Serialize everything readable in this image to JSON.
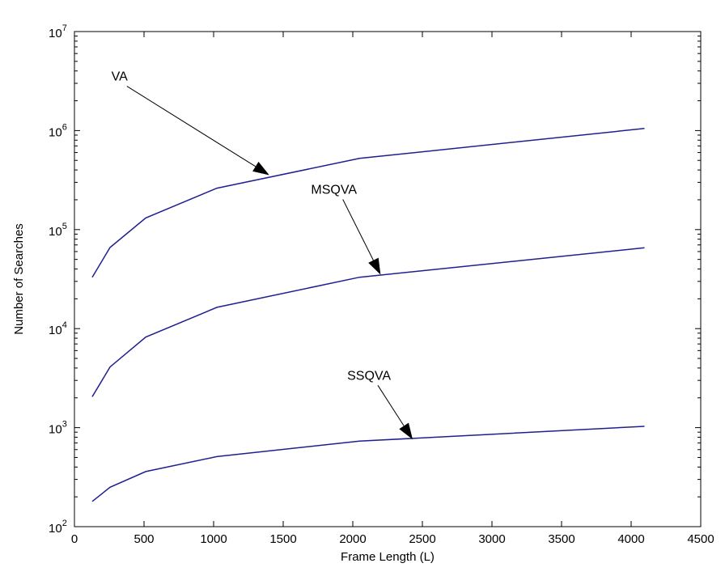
{
  "chart_data": {
    "type": "line",
    "xlabel": "Frame Length (L)",
    "ylabel": "Number of Searches",
    "xlim": [
      0,
      4500
    ],
    "ylim": [
      100,
      10000000
    ],
    "yscale": "log",
    "grid": false,
    "x_ticks": [
      0,
      500,
      1000,
      1500,
      2000,
      2500,
      3000,
      3500,
      4000,
      4500
    ],
    "y_ticks": [
      {
        "value": 100,
        "base": "10",
        "exp": "2"
      },
      {
        "value": 1000,
        "base": "10",
        "exp": "3"
      },
      {
        "value": 10000,
        "base": "10",
        "exp": "4"
      },
      {
        "value": 100000,
        "base": "10",
        "exp": "5"
      },
      {
        "value": 1000000,
        "base": "10",
        "exp": "6"
      },
      {
        "value": 10000000,
        "base": "10",
        "exp": "7"
      }
    ],
    "line_color": "#1f1f8f",
    "series": [
      {
        "label": "VA",
        "x": [
          128,
          256,
          512,
          1024,
          2048,
          4096
        ],
        "y": [
          33000,
          66000,
          131000,
          262000,
          524000,
          1050000
        ]
      },
      {
        "label": "MSQVA",
        "x": [
          128,
          256,
          512,
          1024,
          2048,
          4096
        ],
        "y": [
          2050,
          4100,
          8200,
          16400,
          33000,
          65500
        ]
      },
      {
        "label": "SSQVA",
        "x": [
          128,
          256,
          512,
          1024,
          2048,
          4096
        ],
        "y": [
          180,
          250,
          360,
          510,
          730,
          1030
        ]
      }
    ],
    "annotations": [
      {
        "text": "VA",
        "text_x": 265,
        "text_y": 3200000,
        "arrow_to_x": 1400,
        "arrow_to_y": 355000
      },
      {
        "text": "MSQVA",
        "text_x": 1700,
        "text_y": 230000,
        "arrow_to_x": 2200,
        "arrow_to_y": 35000
      },
      {
        "text": "SSQVA",
        "text_x": 1960,
        "text_y": 3050,
        "arrow_to_x": 2430,
        "arrow_to_y": 760
      }
    ]
  }
}
